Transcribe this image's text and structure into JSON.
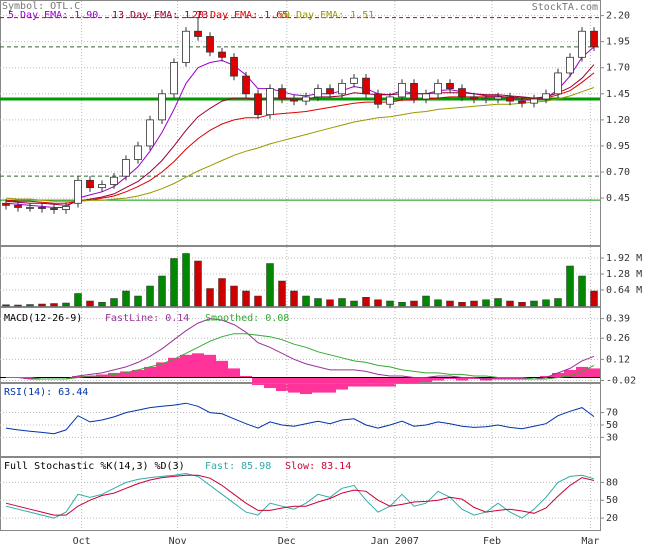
{
  "chart_data": [
    {
      "type": "candlestick",
      "title": "Symbol: OTL.C",
      "source": "StockTA.com",
      "ylim": [
        0,
        2.34
      ],
      "yticks": [
        {
          "value": 2.2,
          "label": "2.20"
        },
        1.95,
        {
          "value": 1.7,
          "label": "1.70"
        },
        1.45,
        {
          "value": 1.2,
          "label": "1.20"
        },
        0.95,
        {
          "value": 0.7,
          "label": "0.70"
        },
        0.45
      ],
      "up_color": "#ffffff",
      "down_color": "#dd0000",
      "open": [
        0.4,
        0.38,
        0.36,
        0.36,
        0.35,
        0.34,
        0.4,
        0.62,
        0.55,
        0.58,
        0.66,
        0.82,
        0.95,
        1.2,
        1.45,
        1.75,
        2.05,
        2.0,
        1.85,
        1.8,
        1.62,
        1.45,
        1.25,
        1.5,
        1.4,
        1.38,
        1.42,
        1.5,
        1.45,
        1.55,
        1.6,
        1.45,
        1.35,
        1.42,
        1.55,
        1.4,
        1.45,
        1.55,
        1.5,
        1.42,
        1.4,
        1.4,
        1.42,
        1.38,
        1.36,
        1.4,
        1.45,
        1.65,
        1.8,
        2.05
      ],
      "high": [
        0.44,
        0.42,
        0.4,
        0.4,
        0.39,
        0.41,
        0.66,
        0.66,
        0.62,
        0.69,
        0.86,
        0.99,
        1.24,
        1.49,
        1.79,
        2.09,
        2.18,
        2.04,
        1.89,
        1.84,
        1.66,
        1.49,
        1.54,
        1.54,
        1.44,
        1.46,
        1.54,
        1.54,
        1.59,
        1.64,
        1.64,
        1.49,
        1.46,
        1.59,
        1.59,
        1.49,
        1.59,
        1.59,
        1.54,
        1.46,
        1.44,
        1.46,
        1.46,
        1.42,
        1.44,
        1.49,
        1.69,
        1.84,
        2.09,
        2.09
      ],
      "low": [
        0.34,
        0.32,
        0.32,
        0.31,
        0.3,
        0.3,
        0.36,
        0.51,
        0.51,
        0.54,
        0.62,
        0.78,
        0.91,
        1.16,
        1.41,
        1.71,
        1.96,
        1.81,
        1.76,
        1.58,
        1.41,
        1.21,
        1.21,
        1.36,
        1.34,
        1.34,
        1.38,
        1.41,
        1.41,
        1.51,
        1.41,
        1.31,
        1.31,
        1.38,
        1.36,
        1.36,
        1.41,
        1.46,
        1.38,
        1.36,
        1.36,
        1.36,
        1.34,
        1.32,
        1.32,
        1.36,
        1.41,
        1.61,
        1.76,
        1.86
      ],
      "close": [
        0.38,
        0.36,
        0.36,
        0.35,
        0.34,
        0.37,
        0.62,
        0.55,
        0.58,
        0.65,
        0.82,
        0.95,
        1.2,
        1.45,
        1.75,
        2.05,
        2.0,
        1.85,
        1.8,
        1.62,
        1.45,
        1.25,
        1.5,
        1.4,
        1.38,
        1.42,
        1.5,
        1.45,
        1.55,
        1.6,
        1.45,
        1.35,
        1.42,
        1.55,
        1.4,
        1.45,
        1.55,
        1.5,
        1.42,
        1.4,
        1.4,
        1.42,
        1.38,
        1.36,
        1.4,
        1.45,
        1.65,
        1.8,
        2.05,
        1.9
      ],
      "series": [
        {
          "name": "5 Day EMA: 1.90",
          "color": "#9900cc",
          "values": [
            0.4,
            0.39,
            0.38,
            0.37,
            0.36,
            0.36,
            0.45,
            0.48,
            0.51,
            0.56,
            0.65,
            0.75,
            0.9,
            1.08,
            1.3,
            1.55,
            1.7,
            1.75,
            1.77,
            1.72,
            1.63,
            1.5,
            1.5,
            1.47,
            1.44,
            1.43,
            1.45,
            1.45,
            1.48,
            1.52,
            1.5,
            1.45,
            1.44,
            1.48,
            1.45,
            1.45,
            1.48,
            1.49,
            1.47,
            1.45,
            1.43,
            1.43,
            1.41,
            1.39,
            1.39,
            1.41,
            1.49,
            1.62,
            1.8,
            1.9
          ]
        },
        {
          "name": "13 Day EMA: 1.73",
          "color": "#990033",
          "values": [
            0.42,
            0.41,
            0.4,
            0.4,
            0.39,
            0.38,
            0.42,
            0.44,
            0.46,
            0.49,
            0.55,
            0.61,
            0.7,
            0.81,
            0.95,
            1.1,
            1.23,
            1.31,
            1.38,
            1.41,
            1.41,
            1.39,
            1.41,
            1.41,
            1.4,
            1.4,
            1.42,
            1.42,
            1.43,
            1.46,
            1.45,
            1.44,
            1.44,
            1.45,
            1.45,
            1.45,
            1.46,
            1.46,
            1.46,
            1.45,
            1.44,
            1.44,
            1.43,
            1.42,
            1.41,
            1.42,
            1.46,
            1.51,
            1.6,
            1.73
          ]
        },
        {
          "name": "20 Day EMA: 1.65",
          "color": "#dd0000",
          "values": [
            0.43,
            0.42,
            0.42,
            0.41,
            0.4,
            0.4,
            0.42,
            0.43,
            0.45,
            0.47,
            0.51,
            0.56,
            0.62,
            0.7,
            0.8,
            0.92,
            1.02,
            1.1,
            1.16,
            1.2,
            1.22,
            1.22,
            1.25,
            1.26,
            1.27,
            1.28,
            1.3,
            1.32,
            1.34,
            1.36,
            1.37,
            1.37,
            1.37,
            1.39,
            1.39,
            1.4,
            1.41,
            1.42,
            1.42,
            1.42,
            1.42,
            1.42,
            1.42,
            1.41,
            1.41,
            1.41,
            1.44,
            1.48,
            1.56,
            1.65
          ]
        },
        {
          "name": "50 Day EMA: 1.51",
          "color": "#999900",
          "values": [
            0.45,
            0.44,
            0.44,
            0.43,
            0.42,
            0.42,
            0.42,
            0.43,
            0.43,
            0.44,
            0.45,
            0.47,
            0.5,
            0.54,
            0.59,
            0.65,
            0.71,
            0.76,
            0.81,
            0.86,
            0.9,
            0.93,
            0.97,
            1.0,
            1.03,
            1.06,
            1.09,
            1.12,
            1.15,
            1.18,
            1.2,
            1.22,
            1.23,
            1.25,
            1.27,
            1.28,
            1.3,
            1.31,
            1.32,
            1.33,
            1.34,
            1.35,
            1.35,
            1.36,
            1.37,
            1.38,
            1.4,
            1.43,
            1.47,
            1.51
          ]
        }
      ],
      "levels": [
        {
          "value": 2.18,
          "color": "#cc0000",
          "dashed": true,
          "bold": false
        },
        {
          "value": 1.9,
          "color": "#336633",
          "dashed": true,
          "bold": false
        },
        {
          "value": 1.4,
          "color": "#009900",
          "dashed": false,
          "bold": true
        },
        {
          "value": 0.66,
          "color": "#336633",
          "dashed": true,
          "bold": false
        },
        {
          "value": 0.43,
          "color": "#009900",
          "dashed": false,
          "bold": false
        }
      ]
    },
    {
      "type": "bar",
      "ylim": [
        0,
        2.36
      ],
      "yticks": [
        {
          "value": 1.92,
          "label": "1.92 M"
        },
        {
          "value": 1.28,
          "label": "1.28 M"
        },
        {
          "value": 0.64,
          "label": "0.64 M"
        }
      ],
      "up_color": "#008800",
      "down_color": "#cc0000",
      "values": [
        0.05,
        0.04,
        0.06,
        0.08,
        0.1,
        0.12,
        0.5,
        0.2,
        0.15,
        0.3,
        0.6,
        0.4,
        0.8,
        1.2,
        1.9,
        2.1,
        1.8,
        0.7,
        1.1,
        0.8,
        0.6,
        0.4,
        1.7,
        1.0,
        0.6,
        0.4,
        0.3,
        0.25,
        0.3,
        0.2,
        0.35,
        0.25,
        0.2,
        0.15,
        0.2,
        0.4,
        0.25,
        0.2,
        0.15,
        0.2,
        0.25,
        0.3,
        0.2,
        0.15,
        0.2,
        0.25,
        0.3,
        1.6,
        1.2,
        0.6
      ]
    },
    {
      "type": "macd",
      "title": "MACD(12-26-9)",
      "ylim": [
        -0.03,
        0.46
      ],
      "yticks": [
        0.39,
        0.26,
        0.12,
        -0.02
      ],
      "series": [
        {
          "name": "FastLine: 0.14",
          "color": "#993399",
          "values": [
            0,
            0,
            -0.01,
            -0.01,
            -0.01,
            -0.01,
            0.01,
            0.02,
            0.03,
            0.05,
            0.07,
            0.1,
            0.14,
            0.19,
            0.25,
            0.31,
            0.36,
            0.39,
            0.38,
            0.35,
            0.3,
            0.23,
            0.2,
            0.16,
            0.12,
            0.09,
            0.07,
            0.05,
            0.05,
            0.05,
            0.04,
            0.02,
            0.01,
            0.01,
            0.0,
            0.0,
            0.01,
            0.01,
            0.0,
            0.0,
            -0.01,
            -0.01,
            -0.01,
            -0.01,
            -0.01,
            0.0,
            0.03,
            0.06,
            0.11,
            0.14
          ]
        },
        {
          "name": "Smoothed: 0.08",
          "color": "#33aa33",
          "values": [
            0,
            0,
            0,
            -0.01,
            -0.01,
            -0.01,
            0,
            0.01,
            0.01,
            0.02,
            0.03,
            0.05,
            0.07,
            0.09,
            0.12,
            0.16,
            0.2,
            0.24,
            0.27,
            0.29,
            0.29,
            0.28,
            0.27,
            0.25,
            0.22,
            0.2,
            0.17,
            0.15,
            0.13,
            0.11,
            0.1,
            0.08,
            0.07,
            0.05,
            0.04,
            0.03,
            0.03,
            0.02,
            0.02,
            0.01,
            0.01,
            0.0,
            0.0,
            0.0,
            -0.01,
            -0.01,
            0.0,
            0.01,
            0.04,
            0.08
          ]
        }
      ],
      "histogram": {
        "color": "#ff3399",
        "values": [
          0,
          0,
          -0.01,
          0,
          0,
          0,
          0.01,
          0.01,
          0.02,
          0.03,
          0.04,
          0.05,
          0.07,
          0.1,
          0.13,
          0.15,
          0.16,
          0.15,
          0.11,
          0.06,
          0.01,
          -0.05,
          -0.07,
          -0.09,
          -0.1,
          -0.11,
          -0.1,
          -0.1,
          -0.08,
          -0.06,
          -0.06,
          -0.06,
          -0.06,
          -0.04,
          -0.04,
          -0.03,
          -0.02,
          -0.01,
          -0.02,
          -0.01,
          -0.02,
          -0.01,
          -0.01,
          -0.01,
          0,
          0.01,
          0.03,
          0.05,
          0.07,
          0.06
        ]
      }
    },
    {
      "type": "line",
      "ylim": [
        0,
        116
      ],
      "yticks": [
        70,
        50,
        30
      ],
      "series": [
        {
          "name": "RSI(14): 63.44",
          "color": "#0033aa",
          "values": [
            45,
            42,
            40,
            38,
            36,
            42,
            65,
            55,
            58,
            63,
            70,
            74,
            78,
            80,
            82,
            85,
            80,
            70,
            68,
            60,
            52,
            45,
            55,
            50,
            48,
            52,
            56,
            52,
            58,
            60,
            50,
            45,
            50,
            56,
            48,
            50,
            55,
            52,
            48,
            46,
            47,
            50,
            46,
            44,
            48,
            52,
            65,
            72,
            78,
            63.44
          ]
        }
      ]
    },
    {
      "type": "line",
      "title": "Full Stochastic %K(14,3) %D(3)",
      "ylim": [
        0,
        121
      ],
      "yticks": [
        80,
        50,
        20
      ],
      "xlim": [
        -0.5,
        49.5
      ],
      "xticks": [
        {
          "value": 6.3,
          "label": "Oct"
        },
        {
          "value": 14.3,
          "label": "Nov"
        },
        {
          "value": 23.4,
          "label": "Dec"
        },
        {
          "value": 32.4,
          "label": "Jan 2007"
        },
        {
          "value": 40.5,
          "label": "Feb"
        },
        {
          "value": 48.7,
          "label": "Mar"
        }
      ],
      "series": [
        {
          "name": "Fast: 85.98",
          "color": "#33aaaa",
          "values": [
            40,
            35,
            30,
            25,
            20,
            30,
            60,
            55,
            60,
            70,
            80,
            85,
            88,
            90,
            92,
            95,
            90,
            75,
            60,
            45,
            30,
            25,
            45,
            40,
            35,
            45,
            60,
            55,
            70,
            75,
            50,
            30,
            40,
            60,
            40,
            45,
            65,
            55,
            35,
            25,
            30,
            45,
            30,
            20,
            35,
            55,
            80,
            90,
            92,
            85.98
          ]
        },
        {
          "name": "Slow: 83.14",
          "color": "#cc0033",
          "values": [
            45,
            40,
            35,
            30,
            25,
            25,
            40,
            50,
            58,
            62,
            70,
            78,
            84,
            88,
            90,
            92,
            92,
            87,
            75,
            60,
            45,
            33,
            33,
            37,
            40,
            40,
            47,
            53,
            62,
            67,
            65,
            50,
            40,
            43,
            47,
            48,
            50,
            55,
            52,
            38,
            30,
            33,
            35,
            32,
            28,
            37,
            57,
            75,
            88,
            83.14
          ]
        }
      ]
    }
  ]
}
